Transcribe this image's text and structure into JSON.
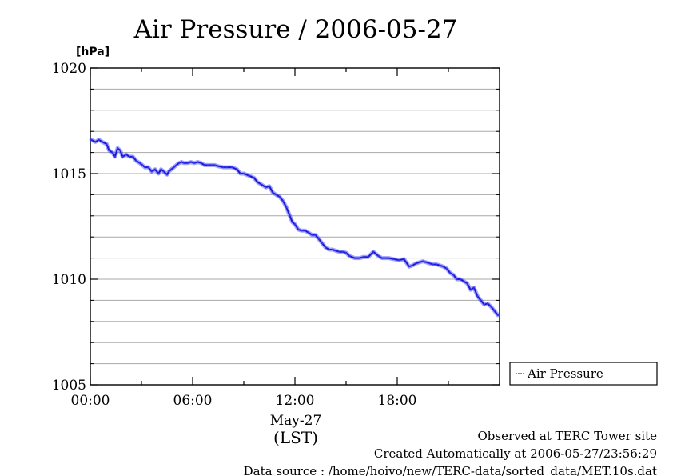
{
  "chart_data": {
    "type": "line",
    "title": "Air Pressure / 2006-05-27",
    "ylabel": "[hPa]",
    "ylim": [
      1005,
      1020
    ],
    "yticks": [
      1005,
      1010,
      1015,
      1020
    ],
    "y_minor_step": 1,
    "xlim": [
      0,
      24
    ],
    "xticks": [
      0,
      6,
      12,
      18
    ],
    "xtick_labels": [
      "00:00",
      "06:00",
      "12:00",
      "18:00"
    ],
    "x_minor_step": 3,
    "x_date_label": "May-27",
    "x_tz_label": "(LST)",
    "grid": "horizontal",
    "legend_position": "right",
    "series": [
      {
        "name": "Air Pressure",
        "color": "#3333ff",
        "x": [
          0.05,
          0.3,
          0.5,
          0.7,
          0.95,
          1.1,
          1.3,
          1.45,
          1.6,
          1.75,
          1.9,
          2.1,
          2.3,
          2.5,
          2.7,
          2.9,
          3.05,
          3.2,
          3.4,
          3.6,
          3.8,
          4.0,
          4.15,
          4.3,
          4.5,
          4.6,
          4.75,
          4.9,
          5.05,
          5.2,
          5.35,
          5.5,
          5.7,
          5.9,
          6.1,
          6.3,
          6.5,
          6.7,
          6.9,
          7.1,
          7.3,
          7.5,
          7.8,
          8.0,
          8.3,
          8.6,
          8.8,
          9.0,
          9.3,
          9.6,
          9.8,
          10.0,
          10.3,
          10.5,
          10.7,
          10.9,
          11.1,
          11.3,
          11.5,
          11.7,
          11.85,
          12.0,
          12.2,
          12.4,
          12.6,
          12.8,
          13.0,
          13.2,
          13.4,
          13.6,
          13.8,
          14.0,
          14.2,
          14.4,
          14.6,
          14.8,
          15.0,
          15.2,
          15.5,
          15.8,
          16.0,
          16.3,
          16.6,
          16.9,
          17.1,
          17.3,
          17.5,
          17.8,
          18.1,
          18.4,
          18.7,
          18.9,
          19.1,
          19.3,
          19.5,
          19.7,
          19.9,
          20.1,
          20.3,
          20.5,
          20.7,
          20.9,
          21.1,
          21.3,
          21.5,
          21.7,
          21.9,
          22.1,
          22.3,
          22.5,
          22.7,
          22.9,
          23.1,
          23.3,
          23.5,
          23.7,
          23.9
        ],
        "values": [
          1016.6,
          1016.5,
          1016.6,
          1016.5,
          1016.4,
          1016.1,
          1016.0,
          1015.8,
          1016.2,
          1016.1,
          1015.8,
          1015.9,
          1015.8,
          1015.8,
          1015.6,
          1015.5,
          1015.4,
          1015.3,
          1015.3,
          1015.1,
          1015.2,
          1015.0,
          1015.2,
          1015.1,
          1014.95,
          1015.1,
          1015.2,
          1015.3,
          1015.4,
          1015.5,
          1015.55,
          1015.5,
          1015.5,
          1015.55,
          1015.5,
          1015.55,
          1015.5,
          1015.4,
          1015.4,
          1015.4,
          1015.4,
          1015.35,
          1015.3,
          1015.3,
          1015.3,
          1015.2,
          1015.0,
          1015.0,
          1014.9,
          1014.8,
          1014.6,
          1014.5,
          1014.35,
          1014.4,
          1014.1,
          1014.0,
          1013.9,
          1013.7,
          1013.4,
          1013.0,
          1012.7,
          1012.6,
          1012.35,
          1012.3,
          1012.3,
          1012.2,
          1012.1,
          1012.1,
          1011.9,
          1011.7,
          1011.5,
          1011.4,
          1011.4,
          1011.35,
          1011.3,
          1011.3,
          1011.25,
          1011.1,
          1011.0,
          1011.0,
          1011.05,
          1011.05,
          1011.3,
          1011.1,
          1011.0,
          1011.0,
          1011.0,
          1010.95,
          1010.9,
          1010.95,
          1010.6,
          1010.65,
          1010.75,
          1010.8,
          1010.85,
          1010.8,
          1010.75,
          1010.7,
          1010.7,
          1010.65,
          1010.6,
          1010.5,
          1010.3,
          1010.2,
          1010.0,
          1010.0,
          1009.9,
          1009.8,
          1009.5,
          1009.6,
          1009.2,
          1009.0,
          1008.8,
          1008.85,
          1008.7,
          1008.5,
          1008.3
        ]
      }
    ]
  },
  "footer": {
    "line1": "Observed at TERC Tower site",
    "line2": "Created Automatically at 2006-05-27/23:56:29",
    "line3": "Data source : /home/hoivo/new/TERC-data/sorted_data/MET.10s.dat"
  }
}
